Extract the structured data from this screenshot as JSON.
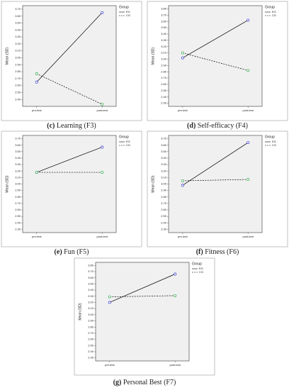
{
  "chart_data": [
    {
      "type": "line",
      "caption_label": "(c)",
      "caption": "Learning (F3)",
      "ylabel": "Mean (SD)",
      "legend_title": "Group",
      "categories": [
        "pre-test",
        "post-test"
      ],
      "series": [
        {
          "name": "EG",
          "color": "#3a3ad0",
          "dash": false,
          "values": [
            2.65,
            3.65
          ]
        },
        {
          "name": "CG",
          "color": "#2ea84a",
          "dash": true,
          "values": [
            2.77,
            2.33
          ]
        }
      ],
      "ylim": [
        2.3,
        3.75
      ],
      "yticks": [
        {
          "value": 2.4,
          "label": "2.40"
        },
        {
          "value": 2.5,
          "label": "2.50"
        },
        {
          "value": 2.6,
          "label": "2.60"
        },
        {
          "value": 2.7,
          "label": "2.70"
        },
        {
          "value": 2.8,
          "label": "2.80"
        },
        {
          "value": 2.9,
          "label": "2.90"
        },
        {
          "value": 3.0,
          "label": "3.00"
        },
        {
          "value": 3.1,
          "label": "3.10"
        },
        {
          "value": 3.2,
          "label": "3.20"
        },
        {
          "value": 3.3,
          "label": "3.30"
        },
        {
          "value": 3.4,
          "label": "3.40"
        },
        {
          "value": 3.5,
          "label": "3.50"
        },
        {
          "value": 3.6,
          "label": "3.60"
        },
        {
          "value": 3.7,
          "label": "3.70"
        }
      ]
    },
    {
      "type": "line",
      "caption_label": "(d)",
      "caption": "Self-efficacy (F4)",
      "ylabel": "Mean (SD)",
      "legend_title": "Group",
      "categories": [
        "pre-test",
        "post-test"
      ],
      "series": [
        {
          "name": "EG",
          "color": "#3a3ad0",
          "dash": false,
          "values": [
            3.02,
            3.62
          ]
        },
        {
          "name": "CG",
          "color": "#2ea84a",
          "dash": true,
          "values": [
            3.1,
            2.82
          ]
        }
      ],
      "ylim": [
        2.25,
        3.85
      ],
      "yticks": [
        {
          "value": 2.3,
          "label": "2.30"
        },
        {
          "value": 2.4,
          "label": "2.40"
        },
        {
          "value": 2.5,
          "label": "2.50"
        },
        {
          "value": 2.6,
          "label": "2.60"
        },
        {
          "value": 2.7,
          "label": "2.70"
        },
        {
          "value": 2.8,
          "label": "2.80"
        },
        {
          "value": 2.9,
          "label": "2.90"
        },
        {
          "value": 3.0,
          "label": "3.00"
        },
        {
          "value": 3.1,
          "label": "3.10"
        },
        {
          "value": 3.2,
          "label": "3.20"
        },
        {
          "value": 3.3,
          "label": "3.30"
        },
        {
          "value": 3.4,
          "label": "3.40"
        },
        {
          "value": 3.5,
          "label": "3.50"
        },
        {
          "value": 3.6,
          "label": "3.60"
        },
        {
          "value": 3.7,
          "label": "3.70"
        },
        {
          "value": 3.8,
          "label": "3.80"
        }
      ]
    },
    {
      "type": "line",
      "caption_label": "(e)",
      "caption": "Fun (F5)",
      "ylabel": "Mean (SD)",
      "legend_title": "Group",
      "categories": [
        "pre-test",
        "post-test"
      ],
      "series": [
        {
          "name": "EG",
          "color": "#3a3ad0",
          "dash": false,
          "values": [
            3.18,
            3.57
          ]
        },
        {
          "name": "CG",
          "color": "#2ea84a",
          "dash": true,
          "values": [
            3.18,
            3.18
          ]
        }
      ],
      "ylim": [
        2.25,
        3.75
      ],
      "yticks": [
        {
          "value": 2.3,
          "label": "2.30"
        },
        {
          "value": 2.4,
          "label": "2.40"
        },
        {
          "value": 2.5,
          "label": "2.50"
        },
        {
          "value": 2.6,
          "label": "2.60"
        },
        {
          "value": 2.7,
          "label": "2.70"
        },
        {
          "value": 2.8,
          "label": "2.80"
        },
        {
          "value": 2.9,
          "label": "2.90"
        },
        {
          "value": 3.0,
          "label": "3.00"
        },
        {
          "value": 3.1,
          "label": "3.10"
        },
        {
          "value": 3.2,
          "label": "3.20"
        },
        {
          "value": 3.3,
          "label": "3.30"
        },
        {
          "value": 3.4,
          "label": "3.40"
        },
        {
          "value": 3.5,
          "label": "3.50"
        },
        {
          "value": 3.6,
          "label": "3.60"
        },
        {
          "value": 3.7,
          "label": "3.70"
        }
      ]
    },
    {
      "type": "line",
      "caption_label": "(f)",
      "caption": "Fitness (F6)",
      "ylabel": "Mean (SD)",
      "legend_title": "Group",
      "categories": [
        "pre-test",
        "post-test"
      ],
      "series": [
        {
          "name": "EG",
          "color": "#3a3ad0",
          "dash": false,
          "values": [
            2.98,
            3.64
          ]
        },
        {
          "name": "CG",
          "color": "#2ea84a",
          "dash": true,
          "values": [
            3.05,
            3.07
          ]
        }
      ],
      "ylim": [
        2.25,
        3.75
      ],
      "yticks": [
        {
          "value": 2.3,
          "label": "2.30"
        },
        {
          "value": 2.4,
          "label": "2.40"
        },
        {
          "value": 2.5,
          "label": "2.50"
        },
        {
          "value": 2.6,
          "label": "2.60"
        },
        {
          "value": 2.7,
          "label": "2.70"
        },
        {
          "value": 2.8,
          "label": "2.80"
        },
        {
          "value": 2.9,
          "label": "2.90"
        },
        {
          "value": 3.0,
          "label": "3.00"
        },
        {
          "value": 3.1,
          "label": "3.10"
        },
        {
          "value": 3.2,
          "label": "3.20"
        },
        {
          "value": 3.3,
          "label": "3.30"
        },
        {
          "value": 3.4,
          "label": "3.40"
        },
        {
          "value": 3.5,
          "label": "3.50"
        },
        {
          "value": 3.6,
          "label": "3.60"
        },
        {
          "value": 3.7,
          "label": "3.70"
        }
      ]
    },
    {
      "type": "line",
      "caption_label": "(g)",
      "caption": "Personal Best (F7)",
      "ylabel": "Mean (SD)",
      "legend_title": "Group",
      "categories": [
        "pre-test",
        "post-test"
      ],
      "series": [
        {
          "name": "EG",
          "color": "#3a3ad0",
          "dash": false,
          "values": [
            3.2,
            3.66
          ]
        },
        {
          "name": "CG",
          "color": "#2ea84a",
          "dash": true,
          "values": [
            3.29,
            3.31
          ]
        }
      ],
      "ylim": [
        2.25,
        3.85
      ],
      "yticks": [
        {
          "value": 2.3,
          "label": "2.30"
        },
        {
          "value": 2.4,
          "label": "2.40"
        },
        {
          "value": 2.5,
          "label": "2.50"
        },
        {
          "value": 2.6,
          "label": "2.60"
        },
        {
          "value": 2.7,
          "label": "2.70"
        },
        {
          "value": 2.8,
          "label": "2.80"
        },
        {
          "value": 2.9,
          "label": "2.90"
        },
        {
          "value": 3.0,
          "label": "3.00"
        },
        {
          "value": 3.1,
          "label": "3.10"
        },
        {
          "value": 3.2,
          "label": "3.20"
        },
        {
          "value": 3.3,
          "label": "3.30"
        },
        {
          "value": 3.4,
          "label": "3.40"
        },
        {
          "value": 3.5,
          "label": "3.50"
        },
        {
          "value": 3.6,
          "label": "3.60"
        },
        {
          "value": 3.7,
          "label": "3.70"
        },
        {
          "value": 3.8,
          "label": "3.80"
        }
      ]
    }
  ]
}
